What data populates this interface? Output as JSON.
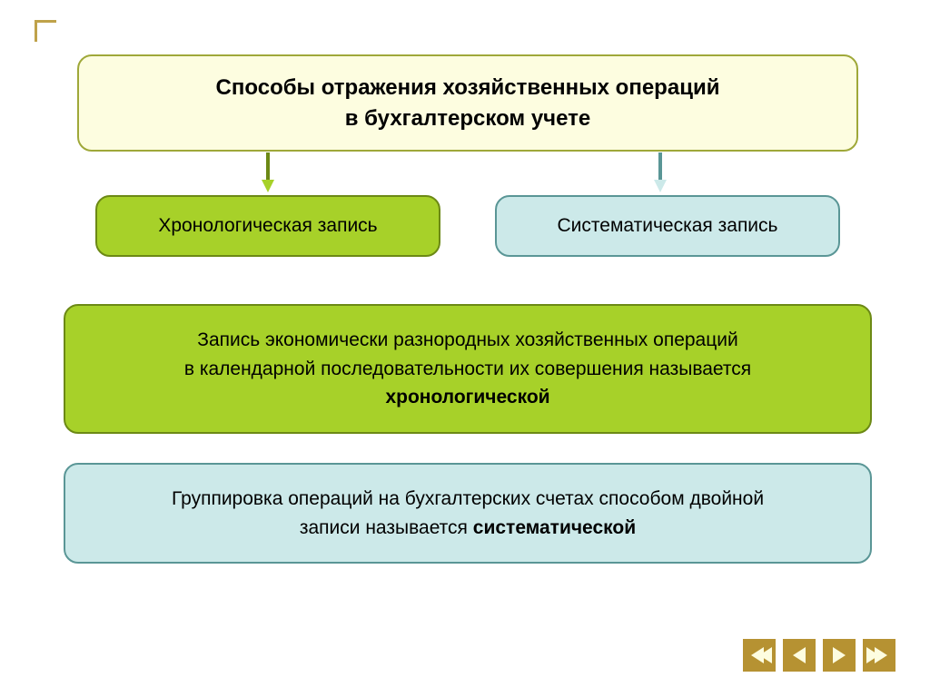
{
  "header": {
    "line1": "Способы отражения хозяйственных операций",
    "line2": "в бухгалтерском учете",
    "bg_color": "#fdfde0",
    "border_color": "#9fa839",
    "font_size": 24
  },
  "arrows": {
    "left": {
      "line_color": "#6c8915",
      "head_color": "#a7d129"
    },
    "right": {
      "line_color": "#5a9696",
      "head_color": "#cce9e9"
    }
  },
  "sub_left": {
    "label": "Хронологическая запись",
    "bg_color": "#a7d129",
    "border_color": "#6c8915",
    "font_size": 21
  },
  "sub_right": {
    "label": "Систематическая запись",
    "bg_color": "#cce9e9",
    "border_color": "#5a9696",
    "font_size": 21
  },
  "desc1": {
    "line1": "Запись экономически разнородных хозяйственных операций",
    "line2": "в календарной последовательности их совершения называется",
    "bold": "хронологической",
    "bg_color": "#a7d129",
    "border_color": "#6c8915",
    "font_size": 21
  },
  "desc2": {
    "line1": "Группировка операций на бухгалтерских счетах способом двойной",
    "line2_pre": "записи называется ",
    "bold": "систематической",
    "bg_color": "#cce9e9",
    "border_color": "#5a9696",
    "font_size": 21
  },
  "nav": {
    "button_bg": "#b69232",
    "arrow_color": "#fdfde0"
  },
  "corner_color": "#bfa24a",
  "page_bg": "#ffffff"
}
